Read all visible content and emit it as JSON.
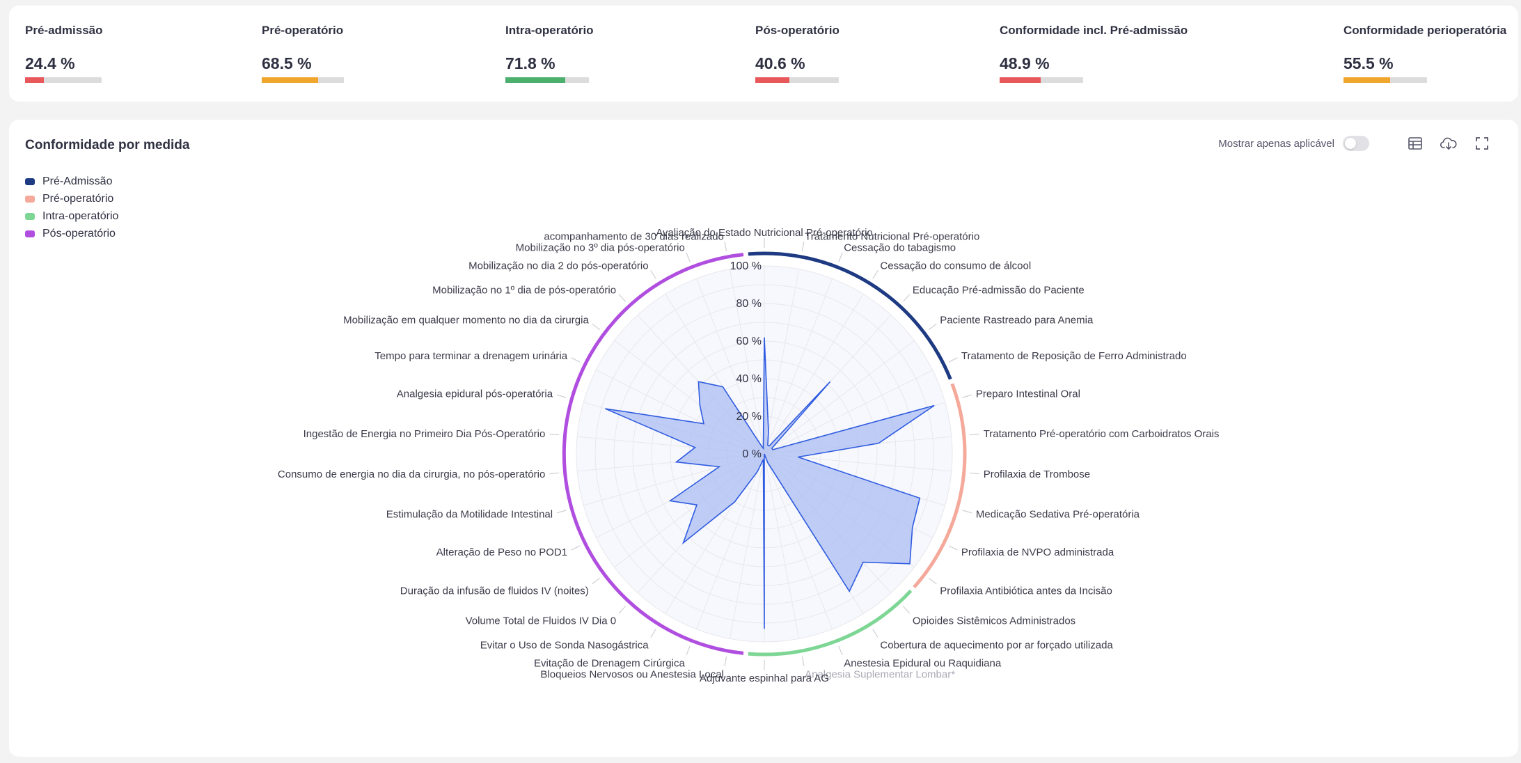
{
  "kpis": [
    {
      "label": "Pré-admissão",
      "value_text": "24.4 %",
      "value": 24.4,
      "color": "#e8585a"
    },
    {
      "label": "Pré-operatório",
      "value_text": "68.5 %",
      "value": 68.5,
      "color": "#f0a62d"
    },
    {
      "label": "Intra-operatório",
      "value_text": "71.8 %",
      "value": 71.8,
      "color": "#4caf6e"
    },
    {
      "label": "Pós-operatório",
      "value_text": "40.6 %",
      "value": 40.6,
      "color": "#e8585a"
    },
    {
      "label": "Conformidade incl. Pré-admissão",
      "value_text": "48.9 %",
      "value": 48.9,
      "color": "#e8585a"
    },
    {
      "label": "Conformidade perioperatória",
      "value_text": "55.5 %",
      "value": 55.5,
      "color": "#f0a62d"
    }
  ],
  "chart_header": {
    "title": "Conformidade por medida",
    "toggle_label": "Mostrar apenas aplicável",
    "toggle_on": false
  },
  "icons": [
    "table-icon",
    "cloud-download-icon",
    "fullscreen-icon"
  ],
  "chart_data": {
    "type": "radar",
    "title": "Conformidade por medida",
    "rlim": [
      0,
      100
    ],
    "r_ticks": [
      0,
      20,
      40,
      60,
      80,
      100
    ],
    "r_tick_labels": [
      "0 %",
      "20 %",
      "40 %",
      "60 %",
      "80 %",
      "100 %"
    ],
    "legend": [
      {
        "name": "Pré-Admissão",
        "color": "#1d3a82"
      },
      {
        "name": "Pré-operatório",
        "color": "#f4a99a"
      },
      {
        "name": "Intra-operatório",
        "color": "#7dd694"
      },
      {
        "name": "Pós-operatório",
        "color": "#b04ee0"
      }
    ],
    "fill_color": "#a9bdf3",
    "line_color": "#2f5be0",
    "categories": [
      {
        "label": "Avaliação do Estado Nutricional Pré-operatório",
        "group": 0,
        "value": 62
      },
      {
        "label": "Tratamento Nutricional Pré-operatório",
        "group": 0,
        "value": 12
      },
      {
        "label": "Cessação do tabagismo",
        "group": 0,
        "value": 5
      },
      {
        "label": "Cessação do consumo de álcool",
        "group": 0,
        "value": 5
      },
      {
        "label": "Educação Pré-admissão do Paciente",
        "group": 0,
        "value": 52
      },
      {
        "label": "Paciente Rastreado para Anemia",
        "group": 0,
        "value": 5
      },
      {
        "label": "Tratamento de Reposição de Ferro Administrado",
        "group": 0,
        "value": 5
      },
      {
        "label": "Preparo Intestinal Oral",
        "group": 1,
        "value": 94
      },
      {
        "label": "Tratamento Pré-operatório com Carboidratos Orais",
        "group": 1,
        "value": 61
      },
      {
        "label": "Profilaxia de Trombose",
        "group": 1,
        "value": 18
      },
      {
        "label": "Medicação Sedativa Pré-operatória",
        "group": 1,
        "value": 86
      },
      {
        "label": "Profilaxia de NVPO administrada",
        "group": 1,
        "value": 88
      },
      {
        "label": "Profilaxia Antibiótica antes da Incisão",
        "group": 1,
        "value": 97
      },
      {
        "label": "Opioides Sistêmicos Administrados",
        "group": 2,
        "value": 78
      },
      {
        "label": "Cobertura de aquecimento por ar forçado utilizada",
        "group": 2,
        "value": 86
      },
      {
        "label": "Anestesia Epidural ou Raquidiana",
        "group": 2,
        "value": 5
      },
      {
        "label": "Analgesia Suplementar Lombar*",
        "group": 2,
        "value": 0,
        "muted": true
      },
      {
        "label": "Adjuvante espinhal para AG",
        "group": 2,
        "value": 93
      },
      {
        "label": "Bloqueios Nervosos ou Anestesia Local",
        "group": 3,
        "value": 3
      },
      {
        "label": "Evitação de Drenagem Cirúrgica",
        "group": 3,
        "value": 10
      },
      {
        "label": "Evitar o Uso de Sonda Nasogástrica",
        "group": 3,
        "value": 30
      },
      {
        "label": "Volume Total de Fluidos IV Dia 0",
        "group": 3,
        "value": 64
      },
      {
        "label": "Duração da infusão de fluidos IV (noites)",
        "group": 3,
        "value": 45
      },
      {
        "label": "Alteração de Peso no POD1",
        "group": 3,
        "value": 56
      },
      {
        "label": "Estimulação da Motilidade Intestinal",
        "group": 3,
        "value": 25
      },
      {
        "label": "Consumo de energia no dia da cirurgia, no pós-operatório",
        "group": 3,
        "value": 47
      },
      {
        "label": "Ingestão de Energia no Primeiro Dia Pós-Operatório",
        "group": 3,
        "value": 37
      },
      {
        "label": "Analgesia epidural pós-operatória",
        "group": 3,
        "value": 88
      },
      {
        "label": "Tempo para terminar a drenagem urinária",
        "group": 3,
        "value": 36
      },
      {
        "label": "Mobilização em qualquer momento no dia da cirurgia",
        "group": 3,
        "value": 43
      },
      {
        "label": "Mobilização no 1º dia de pós-operatório",
        "group": 3,
        "value": 52
      },
      {
        "label": "Mobilização no dia 2 do pós-operatório",
        "group": 3,
        "value": 42
      },
      {
        "label": "Mobilização no 3º dia pós-operatório",
        "group": 3,
        "value": 5
      },
      {
        "label": "acompanhamento de 30 dias realizado",
        "group": 3,
        "value": 3
      }
    ]
  }
}
